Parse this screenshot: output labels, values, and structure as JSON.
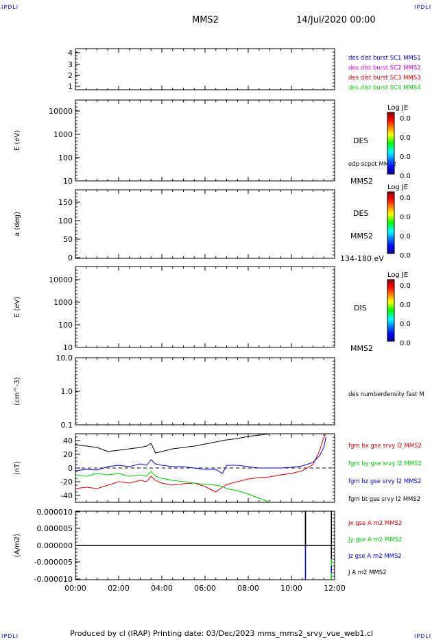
{
  "corners": {
    "tl": "IPDLI",
    "tr": "IPDLI",
    "bl": "IPDLI",
    "br": "IPDLI"
  },
  "header": {
    "spacecraft": "MMS2",
    "datetime": "14/Jul/2020 00:00"
  },
  "footer": {
    "text": "Produced by cl (IRAP)   Printing date: 03/Dec/2023   mms_mms2_srvy_vue_web1.cl"
  },
  "colors": {
    "blue": "#0000dd",
    "magenta": "#dd00dd",
    "red": "#dd0000",
    "green": "#00cc00",
    "black": "#000000"
  },
  "chart_data": [
    {
      "panel": "burst",
      "type": "line",
      "y_ticks": [
        "1",
        "2",
        "3",
        "4"
      ],
      "ylim": [
        0.8,
        4.3
      ],
      "legend": [
        {
          "text": "des dist burst SC1 MMS1",
          "color": "#0000dd"
        },
        {
          "text": "des dist burst SC2 MMS2",
          "color": "#dd00dd"
        },
        {
          "text": "des dist burst SC3 MMS3",
          "color": "#dd0000"
        },
        {
          "text": "des dist burst SC4 MMS4",
          "color": "#00cc00"
        }
      ]
    },
    {
      "panel": "des_energy",
      "type": "heatmap",
      "ylabel": "E (eV)",
      "y_ticks": [
        "10",
        "100",
        "1000",
        "10000"
      ],
      "y_scale": "log",
      "side_labels": [
        "DES",
        "edp scpot MMS2",
        "MMS2"
      ],
      "colorbar": {
        "title": "Log JE",
        "ticks": [
          "0.0",
          "0.0",
          "0.0",
          "0.0"
        ]
      }
    },
    {
      "panel": "des_pitch",
      "type": "heatmap",
      "ylabel": "a (deg)",
      "y_ticks": [
        "0",
        "50",
        "100",
        "150"
      ],
      "ylim": [
        0,
        180
      ],
      "side_labels": [
        "DES",
        "MMS2",
        "134-180 eV"
      ],
      "colorbar": {
        "title": "Log JE",
        "ticks": [
          "0.0",
          "0.0",
          "0.0",
          "0.0"
        ]
      }
    },
    {
      "panel": "dis_energy",
      "type": "heatmap",
      "ylabel": "E (eV)",
      "y_ticks": [
        "10",
        "100",
        "1000",
        "10000"
      ],
      "y_scale": "log",
      "side_labels": [
        "DIS",
        "MMS2"
      ],
      "colorbar": {
        "title": "Log JE",
        "ticks": [
          "0.0",
          "0.0",
          "0.0",
          "0.0"
        ]
      }
    },
    {
      "panel": "density",
      "type": "line",
      "ylabel": "(cm^-3)",
      "y_ticks": [
        "0.1",
        "1.0",
        "10.0"
      ],
      "y_scale": "log",
      "ylim": [
        0.1,
        10
      ],
      "legend": [
        {
          "text": "des numberdensity fast M",
          "color": "#000000"
        }
      ]
    },
    {
      "panel": "fgm",
      "type": "line",
      "ylabel": "(nT)",
      "y_ticks": [
        "-40",
        "-20",
        "0",
        "20",
        "40"
      ],
      "ylim": [
        -50,
        50
      ],
      "x_hours": [
        0,
        0.5,
        1,
        1.5,
        2,
        2.5,
        3,
        3.3,
        3.5,
        3.7,
        4,
        4.5,
        5,
        5.5,
        6,
        6.5,
        6.8,
        7,
        7.5,
        8,
        8.5,
        9,
        9.5,
        10,
        10.5,
        11,
        11.3,
        11.5,
        11.6
      ],
      "series": [
        {
          "name": "fgm bx gse srvy l2 MMS2",
          "color": "#dd0000",
          "values": [
            -30,
            -28,
            -30,
            -25,
            -20,
            -22,
            -18,
            -20,
            -12,
            -18,
            -22,
            -25,
            -23,
            -22,
            -27,
            -35,
            -28,
            -24,
            -20,
            -16,
            -14,
            -13,
            -10,
            -8,
            -4,
            5,
            25,
            45,
            55
          ]
        },
        {
          "name": "fgm by gse srvy l2 MMS2",
          "color": "#00cc00",
          "values": [
            -10,
            -12,
            -8,
            -10,
            -8,
            -12,
            -10,
            -12,
            -5,
            -12,
            -15,
            -18,
            -20,
            -22,
            -24,
            -25,
            -27,
            -30,
            -33,
            -38,
            -44,
            -50,
            null,
            null,
            null,
            null,
            null,
            null,
            null
          ]
        },
        {
          "name": "fgm bz gse srvy l2 MMS2",
          "color": "#0000dd",
          "values": [
            -4,
            -2,
            -3,
            2,
            4,
            2,
            6,
            4,
            12,
            6,
            4,
            2,
            2,
            0,
            -2,
            -2,
            -8,
            4,
            4,
            2,
            0,
            0,
            0,
            1,
            3,
            8,
            18,
            30,
            45
          ]
        },
        {
          "name": "fgm bt gse srvy l2 MMS2",
          "color": "#000000",
          "values": [
            34,
            32,
            30,
            24,
            26,
            28,
            30,
            32,
            36,
            22,
            24,
            28,
            30,
            32,
            35,
            38,
            40,
            41,
            43,
            46,
            48,
            50,
            null,
            null,
            null,
            null,
            null,
            null,
            null
          ]
        }
      ],
      "dashed_zero": true
    },
    {
      "panel": "current",
      "type": "line",
      "ylabel": "(A/m2)",
      "y_ticks": [
        "-0.000010",
        "-0.000005",
        "0.000000",
        "0.000005",
        "0.000010"
      ],
      "ylim": [
        -1e-05,
        1e-05
      ],
      "legend": [
        {
          "text": "Jx gse A m2 MMS2",
          "color": "#dd0000"
        },
        {
          "text": "Jy gse A m2 MMS2",
          "color": "#00cc00"
        },
        {
          "text": "Jz gse A m2 MMS2",
          "color": "#0000dd"
        },
        {
          "text": "J A m2 MMS2",
          "color": "#000000"
        }
      ],
      "spikes": [
        {
          "hour": 10.65,
          "min": -1e-05,
          "max": 1e-05,
          "color": "#0000dd"
        },
        {
          "hour": 10.65,
          "min": -5e-07,
          "max": 1e-05,
          "color": "#000000"
        },
        {
          "hour": 11.85,
          "min": -1e-05,
          "max": 1e-05,
          "color": "#000000"
        },
        {
          "hour": 11.85,
          "min": -1e-05,
          "max": -4e-06,
          "color": "#00cc00"
        },
        {
          "hour": 11.85,
          "min": -8e-06,
          "max": -6e-06,
          "color": "#0000dd"
        }
      ]
    }
  ],
  "x_axis": {
    "ticks": [
      "00:00",
      "02:00",
      "04:00",
      "06:00",
      "08:00",
      "10:00",
      "12:00"
    ],
    "range_hours": [
      0,
      12
    ]
  }
}
